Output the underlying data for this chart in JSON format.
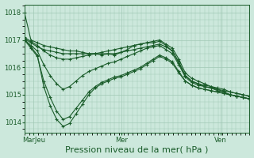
{
  "bg_color": "#cce8dc",
  "grid_color": "#a0c8b4",
  "line_color": "#1a5c2a",
  "xlabel": "Pression niveau de la mer( hPa )",
  "xlabel_fontsize": 8,
  "yticks": [
    1014,
    1015,
    1016,
    1017,
    1018
  ],
  "ylim": [
    1013.6,
    1018.3
  ],
  "xlim": [
    0,
    1
  ],
  "xtick_labels": [
    "MarJeu",
    "Mer",
    "Ven"
  ],
  "xtick_positions": [
    0.04,
    0.43,
    0.87
  ],
  "series": [
    [
      1018.0,
      1017.0,
      1016.9,
      1016.8,
      1016.75,
      1016.7,
      1016.65,
      1016.6,
      1016.6,
      1016.55,
      1016.5,
      1016.5,
      1016.45,
      1016.5,
      1016.45,
      1016.55,
      1016.65,
      1016.8,
      1016.85,
      1016.9,
      1016.95,
      1017.0,
      1016.85,
      1016.7,
      1016.3,
      1015.8,
      1015.6,
      1015.5,
      1015.4,
      1015.3,
      1015.2,
      1015.1,
      1015.0,
      1014.95,
      1014.9,
      1014.85
    ],
    [
      1017.05,
      1016.9,
      1016.75,
      1016.65,
      1016.6,
      1016.55,
      1016.5,
      1016.5,
      1016.5,
      1016.5,
      1016.5,
      1016.5,
      1016.5,
      1016.5,
      1016.5,
      1016.55,
      1016.6,
      1016.65,
      1016.7,
      1016.75,
      1016.8,
      1016.85,
      1016.75,
      1016.6,
      1016.2,
      1015.7,
      1015.5,
      1015.4,
      1015.3,
      1015.25,
      1015.15,
      1015.1,
      1015.0,
      1014.95,
      1014.9,
      1014.85
    ],
    [
      1017.1,
      1016.95,
      1016.8,
      1016.6,
      1016.45,
      1016.35,
      1016.3,
      1016.3,
      1016.35,
      1016.4,
      1016.45,
      1016.5,
      1016.55,
      1016.6,
      1016.65,
      1016.7,
      1016.75,
      1016.8,
      1016.85,
      1016.9,
      1016.9,
      1016.95,
      1016.8,
      1016.6,
      1016.15,
      1015.7,
      1015.5,
      1015.4,
      1015.35,
      1015.3,
      1015.25,
      1015.2,
      1015.1,
      1015.05,
      1015.0,
      1014.95
    ],
    [
      1017.0,
      1016.8,
      1016.6,
      1016.1,
      1015.7,
      1015.4,
      1015.2,
      1015.3,
      1015.5,
      1015.7,
      1015.85,
      1015.95,
      1016.05,
      1016.15,
      1016.2,
      1016.3,
      1016.4,
      1016.5,
      1016.6,
      1016.7,
      1016.75,
      1016.8,
      1016.65,
      1016.5,
      1016.1,
      1015.65,
      1015.45,
      1015.35,
      1015.3,
      1015.25,
      1015.2,
      1015.15,
      1015.1,
      1015.05,
      1015.0,
      1014.95
    ],
    [
      1017.0,
      1016.7,
      1016.4,
      1015.5,
      1014.9,
      1014.4,
      1014.1,
      1014.2,
      1014.5,
      1014.8,
      1015.1,
      1015.3,
      1015.45,
      1015.55,
      1015.65,
      1015.7,
      1015.8,
      1015.9,
      1016.0,
      1016.15,
      1016.3,
      1016.45,
      1016.35,
      1016.2,
      1015.85,
      1015.5,
      1015.35,
      1015.25,
      1015.2,
      1015.15,
      1015.1,
      1015.05,
      1015.0,
      1014.95,
      1014.9,
      1014.85
    ],
    [
      1017.05,
      1016.75,
      1016.45,
      1015.3,
      1014.6,
      1014.1,
      1013.85,
      1013.95,
      1014.3,
      1014.65,
      1015.0,
      1015.25,
      1015.4,
      1015.5,
      1015.6,
      1015.65,
      1015.75,
      1015.85,
      1015.95,
      1016.1,
      1016.25,
      1016.4,
      1016.3,
      1016.15,
      1015.8,
      1015.5,
      1015.35,
      1015.25,
      1015.2,
      1015.15,
      1015.1,
      1015.05,
      1015.0,
      1014.95,
      1014.9,
      1014.85
    ]
  ],
  "marker": "+",
  "markersize": 3.5,
  "linewidth": 0.8
}
